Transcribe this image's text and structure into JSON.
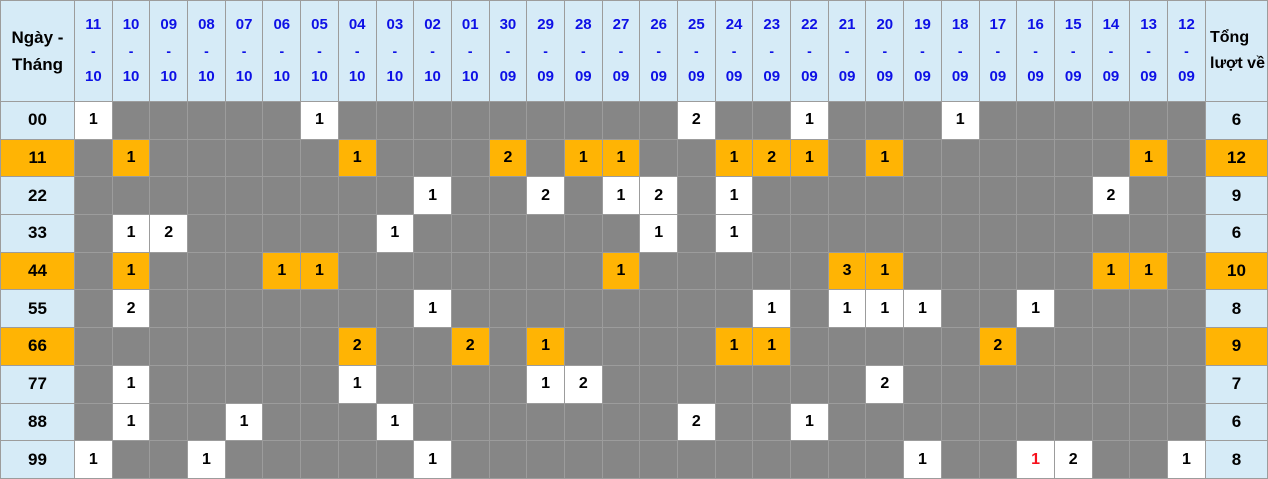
{
  "chart_data": {
    "type": "table",
    "corner": {
      "line1": "Ngày -",
      "line2": "Tháng"
    },
    "date_separator": "-",
    "total_label": "Tổng lượt về",
    "columns": [
      {
        "day": "11",
        "month": "10"
      },
      {
        "day": "10",
        "month": "10"
      },
      {
        "day": "09",
        "month": "10"
      },
      {
        "day": "08",
        "month": "10"
      },
      {
        "day": "07",
        "month": "10"
      },
      {
        "day": "06",
        "month": "10"
      },
      {
        "day": "05",
        "month": "10"
      },
      {
        "day": "04",
        "month": "10"
      },
      {
        "day": "03",
        "month": "10"
      },
      {
        "day": "02",
        "month": "10"
      },
      {
        "day": "01",
        "month": "10"
      },
      {
        "day": "30",
        "month": "09"
      },
      {
        "day": "29",
        "month": "09"
      },
      {
        "day": "28",
        "month": "09"
      },
      {
        "day": "27",
        "month": "09"
      },
      {
        "day": "26",
        "month": "09"
      },
      {
        "day": "25",
        "month": "09"
      },
      {
        "day": "24",
        "month": "09"
      },
      {
        "day": "23",
        "month": "09"
      },
      {
        "day": "22",
        "month": "09"
      },
      {
        "day": "21",
        "month": "09"
      },
      {
        "day": "20",
        "month": "09"
      },
      {
        "day": "19",
        "month": "09"
      },
      {
        "day": "18",
        "month": "09"
      },
      {
        "day": "17",
        "month": "09"
      },
      {
        "day": "16",
        "month": "09"
      },
      {
        "day": "15",
        "month": "09"
      },
      {
        "day": "14",
        "month": "09"
      },
      {
        "day": "13",
        "month": "09"
      },
      {
        "day": "12",
        "month": "09"
      }
    ],
    "rows": [
      {
        "label": "00",
        "highlighted": false,
        "total": 6,
        "cells": [
          1,
          null,
          null,
          null,
          null,
          null,
          1,
          null,
          null,
          null,
          null,
          null,
          null,
          null,
          null,
          null,
          2,
          null,
          null,
          1,
          null,
          null,
          null,
          1,
          null,
          null,
          null,
          null,
          null,
          null
        ]
      },
      {
        "label": "11",
        "highlighted": true,
        "total": 12,
        "cells": [
          null,
          1,
          null,
          null,
          null,
          null,
          null,
          1,
          null,
          null,
          null,
          2,
          null,
          1,
          1,
          null,
          null,
          1,
          2,
          1,
          null,
          1,
          null,
          null,
          null,
          null,
          null,
          null,
          1,
          null
        ]
      },
      {
        "label": "22",
        "highlighted": false,
        "total": 9,
        "cells": [
          null,
          null,
          null,
          null,
          null,
          null,
          null,
          null,
          null,
          1,
          null,
          null,
          2,
          null,
          1,
          2,
          null,
          1,
          null,
          null,
          null,
          null,
          null,
          null,
          null,
          null,
          null,
          2,
          null,
          null
        ]
      },
      {
        "label": "33",
        "highlighted": false,
        "total": 6,
        "cells": [
          null,
          1,
          2,
          null,
          null,
          null,
          null,
          null,
          1,
          null,
          null,
          null,
          null,
          null,
          null,
          1,
          null,
          1,
          null,
          null,
          null,
          null,
          null,
          null,
          null,
          null,
          null,
          null,
          null,
          null
        ]
      },
      {
        "label": "44",
        "highlighted": true,
        "total": 10,
        "cells": [
          null,
          1,
          null,
          null,
          null,
          1,
          1,
          null,
          null,
          null,
          null,
          null,
          null,
          null,
          1,
          null,
          null,
          null,
          null,
          null,
          3,
          1,
          null,
          null,
          null,
          null,
          null,
          1,
          1,
          null
        ]
      },
      {
        "label": "55",
        "highlighted": false,
        "total": 8,
        "cells": [
          null,
          2,
          null,
          null,
          null,
          null,
          null,
          null,
          null,
          1,
          null,
          null,
          null,
          null,
          null,
          null,
          null,
          null,
          1,
          null,
          1,
          1,
          1,
          null,
          null,
          1,
          null,
          null,
          null,
          null
        ]
      },
      {
        "label": "66",
        "highlighted": true,
        "total": 9,
        "cells": [
          null,
          null,
          null,
          null,
          null,
          null,
          null,
          2,
          null,
          null,
          2,
          null,
          1,
          null,
          null,
          null,
          null,
          1,
          1,
          null,
          null,
          null,
          null,
          null,
          2,
          null,
          null,
          null,
          null,
          null
        ]
      },
      {
        "label": "77",
        "highlighted": false,
        "total": 7,
        "cells": [
          null,
          1,
          null,
          null,
          null,
          null,
          null,
          1,
          null,
          null,
          null,
          null,
          1,
          2,
          null,
          null,
          null,
          null,
          null,
          null,
          null,
          2,
          null,
          null,
          null,
          null,
          null,
          null,
          null,
          null
        ]
      },
      {
        "label": "88",
        "highlighted": false,
        "total": 6,
        "cells": [
          null,
          1,
          null,
          null,
          1,
          null,
          null,
          null,
          1,
          null,
          null,
          null,
          null,
          null,
          null,
          null,
          2,
          null,
          null,
          1,
          null,
          null,
          null,
          null,
          null,
          null,
          null,
          null,
          null,
          null
        ]
      },
      {
        "label": "99",
        "highlighted": false,
        "total": 8,
        "cells": [
          1,
          null,
          null,
          1,
          null,
          null,
          null,
          null,
          null,
          1,
          null,
          null,
          null,
          null,
          null,
          null,
          null,
          null,
          null,
          null,
          null,
          null,
          1,
          null,
          null,
          {
            "v": 1,
            "red": true
          },
          2,
          null,
          null,
          1
        ]
      }
    ]
  },
  "colors": {
    "header_bg": "#d6ebf7",
    "date_text": "#0d10e6",
    "grid_line": "#9c9c9c",
    "outer_border": "#7f7f7f",
    "empty_cell": "#868686",
    "filled_cell": "#ffffff",
    "highlight": "#ffb404",
    "text": "#000000",
    "red_text": "#f7101c"
  }
}
